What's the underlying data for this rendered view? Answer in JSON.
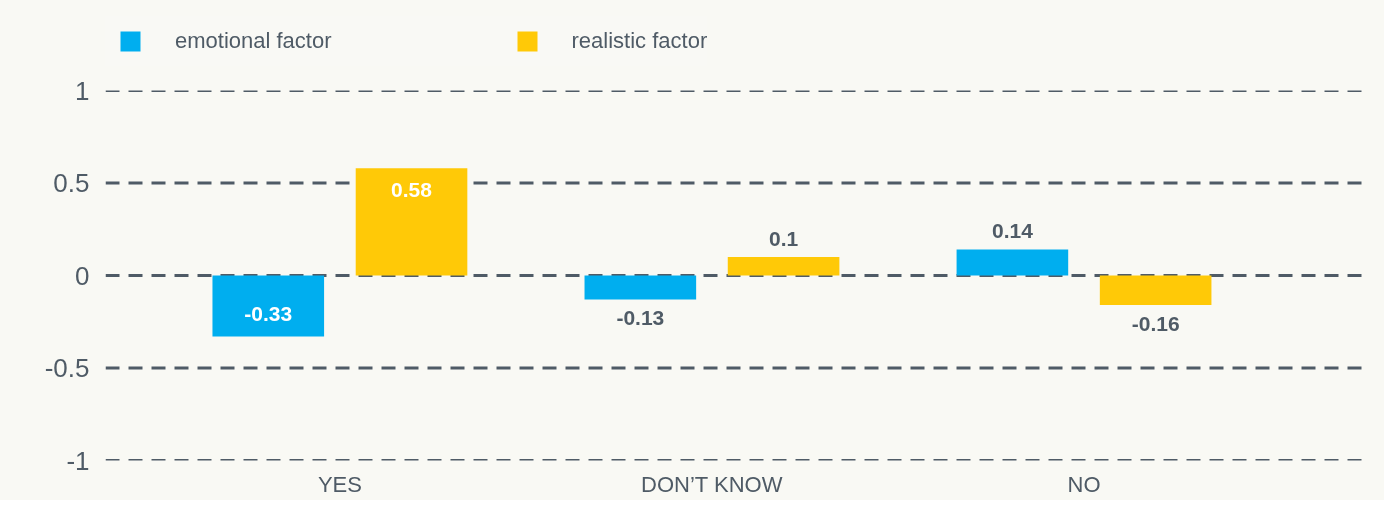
{
  "chart_data": {
    "type": "bar",
    "categories": [
      "YES",
      "DON’T KNOW",
      "NO"
    ],
    "series": [
      {
        "name": "emotional factor",
        "color": "#00aeef",
        "values": [
          -0.33,
          -0.13,
          0.14
        ]
      },
      {
        "name": "realistic factor",
        "color": "#ffc907",
        "values": [
          0.58,
          0.1,
          -0.16
        ]
      }
    ],
    "ylim": [
      -1,
      1
    ],
    "yticks": [
      -1,
      -0.5,
      0,
      0.5,
      1
    ],
    "grid": "y",
    "line_style": "dashed",
    "legend": "top left",
    "data_labels": true
  }
}
